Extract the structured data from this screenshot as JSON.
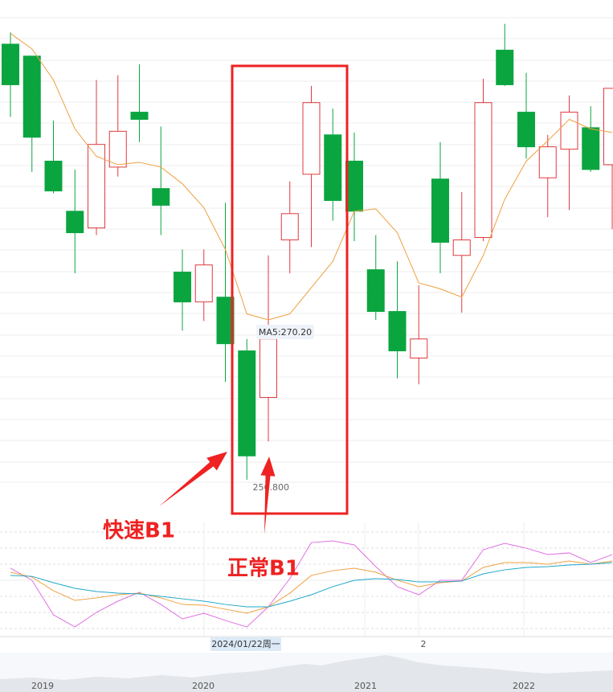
{
  "chart_data": [
    {
      "type": "candlestick",
      "categories": [
        null,
        null,
        null,
        null,
        null,
        null,
        null,
        null,
        null,
        null,
        null,
        null,
        null,
        null,
        null,
        null,
        null,
        null,
        null,
        null,
        null,
        null,
        null,
        null,
        null,
        null,
        null,
        null,
        null
      ],
      "open": [
        293.3,
        292.3,
        283.5,
        279.3,
        277.9,
        283.0,
        287.6,
        281.2,
        274.2,
        271.7,
        272.1,
        267.6,
        263.7,
        276.9,
        282.4,
        285.7,
        283.5,
        274.4,
        270.9,
        267.0,
        282.0,
        275.6,
        277.1,
        292.8,
        287.6,
        282.1,
        284.5,
        286.3,
        283.2
      ],
      "high": [
        294.3,
        292.3,
        286.9,
        282.8,
        290.3,
        290.7,
        291.6,
        286.4,
        276.1,
        276.1,
        280.0,
        268.6,
        275.6,
        281.8,
        289.8,
        287.9,
        285.9,
        277.3,
        275.1,
        273.1,
        285.1,
        280.9,
        290.4,
        295.0,
        290.9,
        285.7,
        289.0,
        288.1,
        289.6
      ],
      "low": [
        287.2,
        282.6,
        280.8,
        274.1,
        277.3,
        282.2,
        285.1,
        277.3,
        269.3,
        270.1,
        265.0,
        256.8,
        260.0,
        274.1,
        276.3,
        278.5,
        276.8,
        270.2,
        265.3,
        264.8,
        274.1,
        270.8,
        276.8,
        289.8,
        283.7,
        278.8,
        279.4,
        282.6,
        277.8
      ],
      "close": [
        289.9,
        285.5,
        281.0,
        277.5,
        284.9,
        286.0,
        287.0,
        279.8,
        271.7,
        274.8,
        268.2,
        258.8,
        268.6,
        279.1,
        288.4,
        280.2,
        279.3,
        270.9,
        267.6,
        268.6,
        276.7,
        276.9,
        288.4,
        289.9,
        284.7,
        284.7,
        287.6,
        282.8,
        289.6
      ],
      "low_labels": [
        null,
        null,
        null,
        null,
        null,
        null,
        null,
        null,
        null,
        null,
        null,
        "256.800",
        null,
        null,
        null,
        null,
        null,
        null,
        null,
        null,
        null,
        null,
        null,
        null,
        null,
        null,
        null,
        null,
        null
      ],
      "up_color": "#e0393e",
      "down_color": "#0ba540",
      "lines": [
        {
          "color": "#f0a040",
          "values": [
            294.2,
            292.9,
            290.3,
            286.2,
            283.9,
            283.2,
            283.4,
            283.0,
            281.6,
            279.6,
            276.1,
            270.7,
            270.2,
            270.7,
            272.9,
            275.1,
            279.3,
            279.5,
            277.5,
            273.3,
            272.8,
            272.1,
            275.6,
            280.3,
            283.5,
            285.2,
            287.0,
            286.2,
            285.9
          ]
        }
      ],
      "tooltip": "MA5:270.20",
      "ylim": [
        253.9,
        297.0
      ],
      "x_axis_labels": [
        "2024/01/22周一",
        "2"
      ],
      "navigator_labels": [
        "2019",
        "2020",
        "2021",
        "2022"
      ],
      "annotations": {
        "box_color": "#ee2222",
        "fast": "快速B1",
        "normal": "正常B1"
      }
    },
    {
      "type": "line",
      "categories": [
        null,
        null,
        null,
        null,
        null,
        null,
        null,
        null,
        null,
        null,
        null,
        null,
        null,
        null,
        null,
        null,
        null,
        null,
        null,
        null,
        null,
        null,
        null,
        null,
        null,
        null,
        null,
        null,
        null
      ],
      "series": [
        {
          "color": "#e070e0",
          "values": [
            59.3,
            48.6,
            17.9,
            7.1,
            20.0,
            30.0,
            37.9,
            27.1,
            14.3,
            19.3,
            12.9,
            7.1,
            25.0,
            50.0,
            82.1,
            83.6,
            80.0,
            60.7,
            42.9,
            35.7,
            48.6,
            48.6,
            75.7,
            81.4,
            77.1,
            71.4,
            72.9,
            64.3,
            71.4
          ]
        },
        {
          "color": "#f0a040",
          "values": [
            55.7,
            51.4,
            39.3,
            30.7,
            32.9,
            35.7,
            37.1,
            32.9,
            27.1,
            26.4,
            22.9,
            19.3,
            25.0,
            37.1,
            52.9,
            57.1,
            59.3,
            55.7,
            48.6,
            42.9,
            46.4,
            47.9,
            60.0,
            64.3,
            64.3,
            62.9,
            65.7,
            62.9,
            65.7
          ]
        },
        {
          "color": "#20a8c8",
          "values": [
            52.9,
            52.1,
            46.4,
            41.4,
            38.6,
            37.1,
            36.4,
            34.3,
            32.1,
            30.0,
            27.1,
            25.0,
            25.0,
            30.0,
            35.7,
            42.9,
            48.6,
            50.0,
            49.3,
            47.1,
            47.1,
            47.9,
            54.3,
            57.9,
            60.0,
            60.7,
            62.1,
            62.9,
            64.3
          ]
        }
      ],
      "ylim": [
        0,
        100
      ]
    }
  ]
}
